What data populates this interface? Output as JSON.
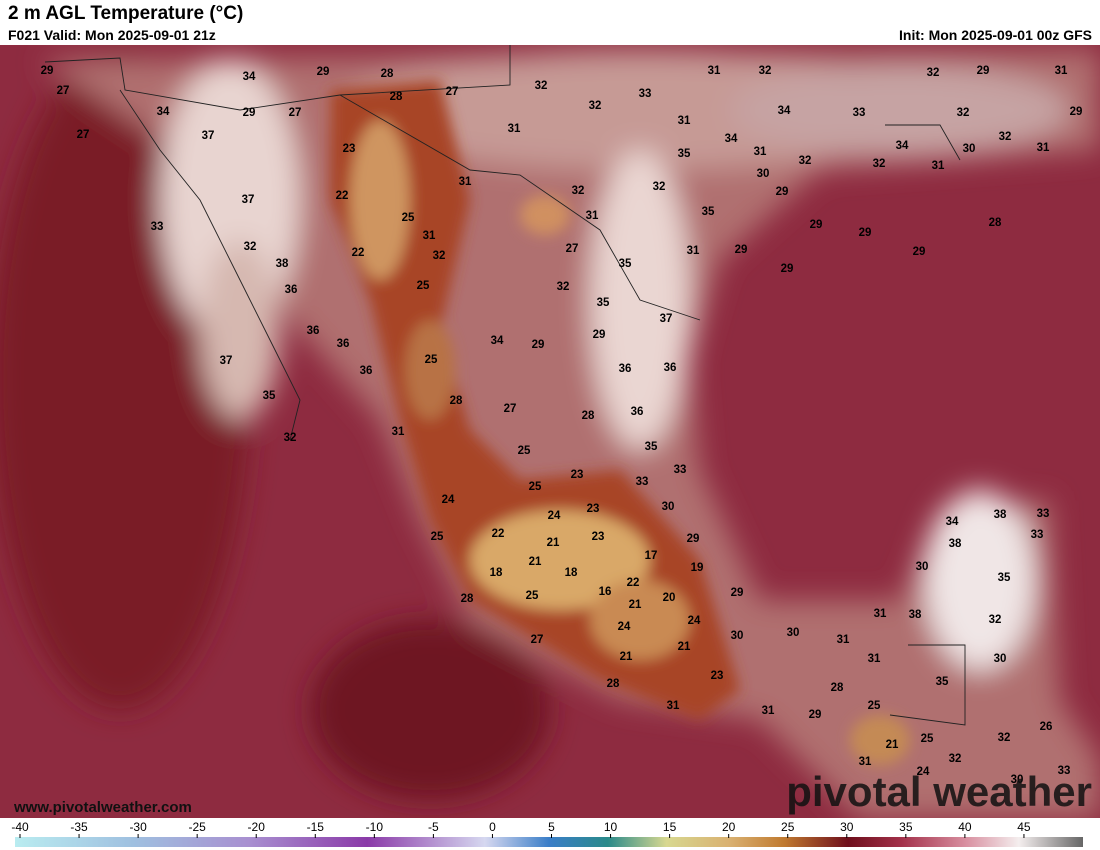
{
  "header": {
    "title": "2 m AGL Temperature (°C)",
    "valid": "F021 Valid: Mon 2025-09-01 21z",
    "init": "Init: Mon 2025-09-01 00z GFS"
  },
  "map": {
    "labels": [
      29,
      27,
      27,
      34,
      29,
      28,
      34,
      37,
      29,
      27,
      28,
      27,
      32,
      32,
      33,
      31,
      32,
      32,
      29,
      31,
      29,
      31,
      31,
      34,
      33,
      32,
      23,
      37,
      22,
      31,
      32,
      32,
      35,
      34,
      31,
      32,
      32,
      34,
      30,
      32,
      31,
      31,
      30,
      29,
      33,
      25,
      31,
      32,
      22,
      32,
      38,
      36,
      31,
      35,
      27,
      35,
      31,
      29,
      29,
      29,
      29,
      29,
      28,
      25,
      32,
      35,
      36,
      36,
      36,
      37,
      35,
      32,
      34,
      29,
      29,
      37,
      25,
      36,
      36,
      28,
      27,
      28,
      36,
      31,
      35,
      25,
      33,
      23,
      25,
      33,
      24,
      24,
      23,
      30,
      25,
      22,
      21,
      23,
      21,
      17,
      29,
      18,
      18,
      22,
      19,
      16,
      25,
      21,
      20,
      29,
      28,
      24,
      24,
      30,
      27,
      21,
      21,
      23,
      28,
      31,
      31,
      30,
      31,
      31,
      28,
      25,
      29,
      31,
      38,
      34,
      38,
      33,
      38,
      33,
      30,
      35,
      32,
      30,
      35,
      21,
      25,
      32,
      32,
      26,
      31,
      24,
      30,
      33
    ]
  },
  "website": "www.pivotalweather.com",
  "watermark": "pivotal weather",
  "colorbar": {
    "lim": [
      -40,
      50
    ],
    "ticks": [
      -40,
      -35,
      -30,
      -25,
      -20,
      -15,
      -10,
      -5,
      0,
      5,
      10,
      15,
      20,
      25,
      30,
      35,
      40,
      45
    ]
  }
}
